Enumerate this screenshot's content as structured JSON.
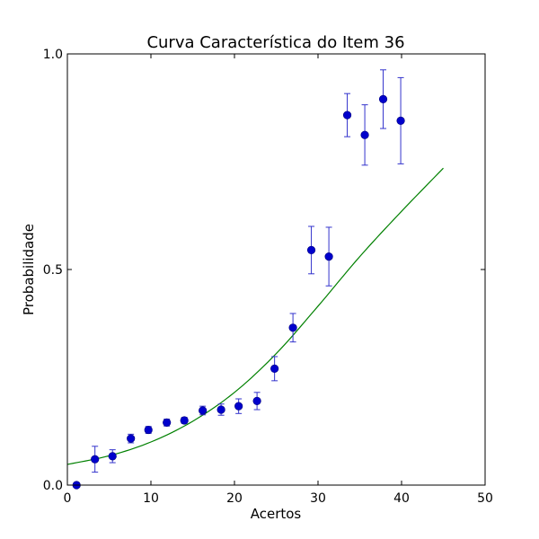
{
  "chart_data": {
    "type": "scatter",
    "title": "Curva Característica do Item 36",
    "xlabel": "Acertos",
    "ylabel": "Probabilidade",
    "xlim": [
      0,
      50
    ],
    "ylim": [
      0.0,
      1.0
    ],
    "xticks": [
      0,
      10,
      20,
      30,
      40,
      50
    ],
    "xtick_labels": [
      "0",
      "10",
      "20",
      "30",
      "40",
      "50"
    ],
    "yticks": [
      0.0,
      0.5,
      1.0
    ],
    "ytick_labels": [
      "0.0",
      "0.5",
      "1.0"
    ],
    "grid": false,
    "colors": {
      "points": "#0000cc",
      "errorbars": "#3333cc",
      "curve": "#008000"
    },
    "series": [
      {
        "type": "errorbar-points",
        "x": [
          1.1,
          3.3,
          5.4,
          7.6,
          9.7,
          11.9,
          14.0,
          16.2,
          18.4,
          20.5,
          22.7,
          24.8,
          27.0,
          29.2,
          31.3,
          33.5,
          35.6,
          37.8,
          39.9
        ],
        "y": [
          0.0,
          0.06,
          0.067,
          0.108,
          0.128,
          0.145,
          0.15,
          0.173,
          0.175,
          0.183,
          0.195,
          0.27,
          0.365,
          0.545,
          0.53,
          0.858,
          0.812,
          0.895,
          0.845
        ],
        "yerr_low": [
          0.0,
          0.03,
          0.015,
          0.01,
          0.008,
          0.008,
          0.007,
          0.01,
          0.013,
          0.017,
          0.02,
          0.028,
          0.033,
          0.055,
          0.068,
          0.05,
          0.07,
          0.068,
          0.1
        ],
        "yerr_high": [
          0.0,
          0.03,
          0.015,
          0.01,
          0.008,
          0.008,
          0.007,
          0.01,
          0.013,
          0.017,
          0.02,
          0.028,
          0.033,
          0.055,
          0.068,
          0.05,
          0.07,
          0.068,
          0.1
        ]
      },
      {
        "type": "line",
        "x": [
          0,
          5,
          10,
          15,
          20,
          25,
          30,
          35,
          40,
          45
        ],
        "y": [
          0.048,
          0.068,
          0.1,
          0.148,
          0.215,
          0.305,
          0.415,
          0.53,
          0.635,
          0.735
        ]
      }
    ]
  }
}
